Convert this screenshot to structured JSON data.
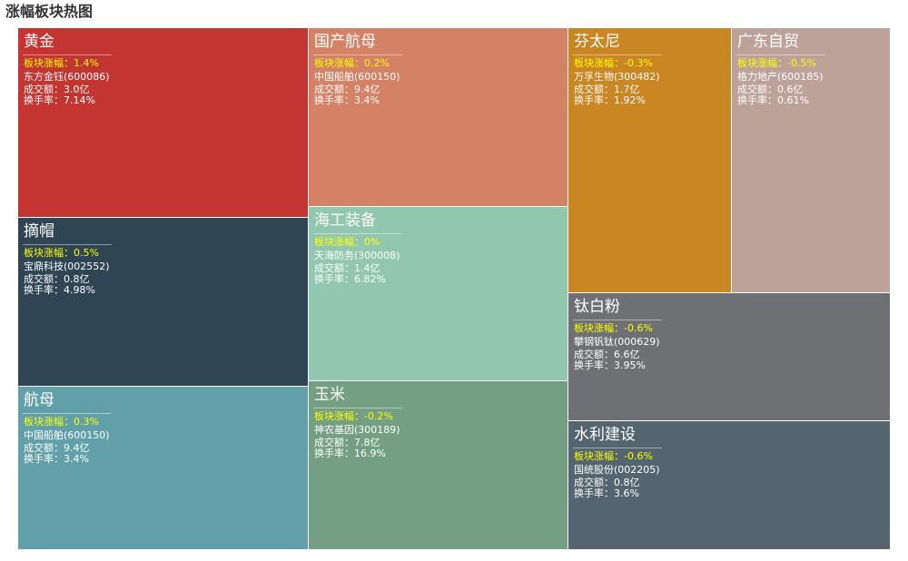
{
  "page": {
    "title": "涨幅板块热图"
  },
  "labels": {
    "change_prefix": "板块涨幅：",
    "volume_prefix": "成交额：",
    "turnover_prefix": "换手率："
  },
  "chart_data": {
    "type": "treemap",
    "title": "涨幅板块热图",
    "sectors": [
      {
        "name": "黄金",
        "change": "1.4%",
        "stock": "东方金钰(600086)",
        "volume": "3.0亿",
        "turnover": "7.14%",
        "color": "#c23531"
      },
      {
        "name": "摘帽",
        "change": "0.5%",
        "stock": "宝鼎科技(002552)",
        "volume": "0.8亿",
        "turnover": "4.98%",
        "color": "#2f4554"
      },
      {
        "name": "航母",
        "change": "0.3%",
        "stock": "中国船舶(600150)",
        "volume": "9.4亿",
        "turnover": "3.4%",
        "color": "#61a0a8"
      },
      {
        "name": "国产航母",
        "change": "0.2%",
        "stock": "中国船舶(600150)",
        "volume": "9.4亿",
        "turnover": "3.4%",
        "color": "#d48265"
      },
      {
        "name": "海工装备",
        "change": "0%",
        "stock": "天海防务(300008)",
        "volume": "1.4亿",
        "turnover": "6.82%",
        "color": "#91c7ae"
      },
      {
        "name": "玉米",
        "change": "-0.2%",
        "stock": "神农基因(300189)",
        "volume": "7.8亿",
        "turnover": "16.9%",
        "color": "#749f83"
      },
      {
        "name": "芬太尼",
        "change": "-0.3%",
        "stock": "万孚生物(300482)",
        "volume": "1.7亿",
        "turnover": "1.92%",
        "color": "#ca8622"
      },
      {
        "name": "广东自贸",
        "change": "-0.5%",
        "stock": "格力地产(600185)",
        "volume": "0.6亿",
        "turnover": "0.61%",
        "color": "#bda29a"
      },
      {
        "name": "钛白粉",
        "change": "-0.6%",
        "stock": "攀钢钒钛(000629)",
        "volume": "6.6亿",
        "turnover": "3.95%",
        "color": "#6e7074"
      },
      {
        "name": "水利建设",
        "change": "-0.6%",
        "stock": "国统股份(002205)",
        "volume": "0.8亿",
        "turnover": "3.6%",
        "color": "#546570"
      }
    ]
  }
}
